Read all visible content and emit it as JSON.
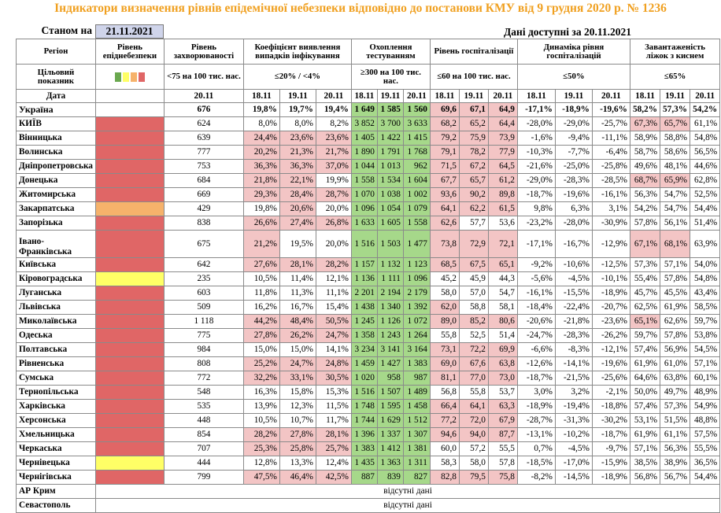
{
  "title": "Індикатори визначення рівнів епідемічної небезпеки відповідно до постанови КМУ від 9 грудня 2020 р. № 1236",
  "as_of_label": "Станом на",
  "as_of_value": "21.11.2021",
  "data_available": "Дані доступні за  20.11.2021",
  "headers": {
    "region": "Регіон",
    "danger_level": "Рівень епіднебезпеки",
    "incidence": "Рівень захворюваності",
    "detection": "Коефіцієнт виявлення випадків інфікування",
    "testing": "Охоплення тестуванням",
    "hosp": "Рівень госпіталізації",
    "hosp_dyn": "Динаміка рівня госпіталізацій",
    "oxygen": "Завантаженість ліжок з киснем",
    "target_label": "Цільовий показник",
    "incidence_target": "<75 на 100 тис. нас.",
    "detection_target": "≤20% / <4%",
    "testing_target": "≥300 на 100 тис. нас.",
    "hosp_target": "≤60 на 100 тис. нас.",
    "hosp_dyn_target": "≤50%",
    "oxygen_target": "≤65%",
    "date_label": "Дата",
    "date_single": "20.11",
    "dates": [
      "18.11",
      "19.11",
      "20.11"
    ]
  },
  "colors": {
    "red": "#e06666",
    "orange": "#f6b26b",
    "yellow": "#ffff66",
    "green": "#6aa84f",
    "pink": "#f3c5c5",
    "light_green": "#a6d88a",
    "title": "#f0a020"
  },
  "legend_swatches": [
    "#6aa84f",
    "#ffff66",
    "#f6b26b",
    "#e06666"
  ],
  "missing_text": "відсутні дані",
  "rows": [
    {
      "region": "Україна",
      "level": "",
      "inc": "676",
      "det": [
        "19,8%",
        "19,7%",
        "19,4%"
      ],
      "det_flag": [
        0,
        0,
        0
      ],
      "test": [
        "1 649",
        "1 585",
        "1 560"
      ],
      "test_flag": [
        1,
        1,
        1
      ],
      "hosp": [
        "69,6",
        "67,1",
        "64,9"
      ],
      "hosp_flag": [
        1,
        1,
        1
      ],
      "dyn": [
        "-17,1%",
        "-18,9%",
        "-19,6%"
      ],
      "oxy": [
        "58,2%",
        "57,3%",
        "54,2%"
      ],
      "oxy_flag": [
        0,
        0,
        0
      ]
    },
    {
      "region": "КИЇВ",
      "level": "red",
      "inc": "624",
      "det": [
        "8,0%",
        "8,0%",
        "8,2%"
      ],
      "det_flag": [
        0,
        0,
        0
      ],
      "test": [
        "3 852",
        "3 700",
        "3 633"
      ],
      "test_flag": [
        1,
        1,
        1
      ],
      "hosp": [
        "68,2",
        "65,2",
        "64,4"
      ],
      "hosp_flag": [
        1,
        1,
        1
      ],
      "dyn": [
        "-28,0%",
        "-29,0%",
        "-25,7%"
      ],
      "oxy": [
        "67,3%",
        "65,7%",
        "61,1%"
      ],
      "oxy_flag": [
        1,
        1,
        0
      ]
    },
    {
      "region": "Вінницька",
      "level": "red",
      "inc": "639",
      "det": [
        "24,4%",
        "23,6%",
        "23,6%"
      ],
      "det_flag": [
        1,
        1,
        1
      ],
      "test": [
        "1 405",
        "1 422",
        "1 415"
      ],
      "test_flag": [
        1,
        1,
        1
      ],
      "hosp": [
        "79,2",
        "75,9",
        "73,9"
      ],
      "hosp_flag": [
        1,
        1,
        1
      ],
      "dyn": [
        "-1,6%",
        "-9,4%",
        "-11,1%"
      ],
      "oxy": [
        "58,9%",
        "58,8%",
        "54,8%"
      ],
      "oxy_flag": [
        0,
        0,
        0
      ]
    },
    {
      "region": "Волинська",
      "level": "red",
      "inc": "777",
      "det": [
        "20,2%",
        "21,3%",
        "21,7%"
      ],
      "det_flag": [
        1,
        1,
        1
      ],
      "test": [
        "1 890",
        "1 791",
        "1 768"
      ],
      "test_flag": [
        1,
        1,
        1
      ],
      "hosp": [
        "79,1",
        "78,2",
        "77,9"
      ],
      "hosp_flag": [
        1,
        1,
        1
      ],
      "dyn": [
        "-10,3%",
        "-7,7%",
        "-6,4%"
      ],
      "oxy": [
        "58,7%",
        "58,6%",
        "56,5%"
      ],
      "oxy_flag": [
        0,
        0,
        0
      ]
    },
    {
      "region": "Дніпропетровська",
      "level": "red",
      "inc": "753",
      "det": [
        "36,3%",
        "36,3%",
        "37,0%"
      ],
      "det_flag": [
        1,
        1,
        1
      ],
      "test": [
        "1 044",
        "1 013",
        "962"
      ],
      "test_flag": [
        1,
        1,
        1
      ],
      "hosp": [
        "71,5",
        "67,2",
        "64,5"
      ],
      "hosp_flag": [
        1,
        1,
        1
      ],
      "dyn": [
        "-21,6%",
        "-25,0%",
        "-25,8%"
      ],
      "oxy": [
        "49,6%",
        "48,1%",
        "44,6%"
      ],
      "oxy_flag": [
        0,
        0,
        0
      ]
    },
    {
      "region": "Донецька",
      "level": "red",
      "inc": "684",
      "det": [
        "21,8%",
        "22,1%",
        "19,9%"
      ],
      "det_flag": [
        1,
        1,
        0
      ],
      "test": [
        "1 558",
        "1 534",
        "1 604"
      ],
      "test_flag": [
        1,
        1,
        1
      ],
      "hosp": [
        "67,7",
        "65,7",
        "61,2"
      ],
      "hosp_flag": [
        1,
        1,
        1
      ],
      "dyn": [
        "-29,0%",
        "-28,3%",
        "-28,5%"
      ],
      "oxy": [
        "68,7%",
        "65,9%",
        "62,8%"
      ],
      "oxy_flag": [
        1,
        1,
        0
      ]
    },
    {
      "region": "Житомирська",
      "level": "red",
      "inc": "669",
      "det": [
        "29,3%",
        "28,4%",
        "28,7%"
      ],
      "det_flag": [
        1,
        1,
        1
      ],
      "test": [
        "1 070",
        "1 038",
        "1 002"
      ],
      "test_flag": [
        1,
        1,
        1
      ],
      "hosp": [
        "93,6",
        "90,2",
        "89,8"
      ],
      "hosp_flag": [
        1,
        1,
        1
      ],
      "dyn": [
        "-18,7%",
        "-19,6%",
        "-16,1%"
      ],
      "oxy": [
        "56,3%",
        "54,7%",
        "52,5%"
      ],
      "oxy_flag": [
        0,
        0,
        0
      ]
    },
    {
      "region": "Закарпатська",
      "level": "orange",
      "inc": "429",
      "det": [
        "19,8%",
        "20,6%",
        "20,0%"
      ],
      "det_flag": [
        0,
        1,
        0
      ],
      "test": [
        "1 096",
        "1 054",
        "1 079"
      ],
      "test_flag": [
        1,
        1,
        1
      ],
      "hosp": [
        "64,1",
        "62,2",
        "61,5"
      ],
      "hosp_flag": [
        1,
        1,
        1
      ],
      "dyn": [
        "9,8%",
        "6,3%",
        "3,1%"
      ],
      "oxy": [
        "54,2%",
        "54,7%",
        "54,4%"
      ],
      "oxy_flag": [
        0,
        0,
        0
      ]
    },
    {
      "region": "Запорізька",
      "level": "red",
      "inc": "838",
      "det": [
        "26,6%",
        "27,4%",
        "26,8%"
      ],
      "det_flag": [
        1,
        1,
        1
      ],
      "test": [
        "1 633",
        "1 605",
        "1 558"
      ],
      "test_flag": [
        1,
        1,
        1
      ],
      "hosp": [
        "62,6",
        "57,7",
        "53,6"
      ],
      "hosp_flag": [
        1,
        0,
        0
      ],
      "dyn": [
        "-23,2%",
        "-28,0%",
        "-30,9%"
      ],
      "oxy": [
        "57,8%",
        "56,1%",
        "51,4%"
      ],
      "oxy_flag": [
        0,
        0,
        0
      ]
    },
    {
      "region": "Івано-Франківська",
      "level": "red",
      "inc": "675",
      "det": [
        "21,2%",
        "19,5%",
        "20,0%"
      ],
      "det_flag": [
        1,
        0,
        0
      ],
      "test": [
        "1 516",
        "1 503",
        "1 477"
      ],
      "test_flag": [
        1,
        1,
        1
      ],
      "hosp": [
        "73,8",
        "72,9",
        "72,1"
      ],
      "hosp_flag": [
        1,
        1,
        1
      ],
      "dyn": [
        "-17,1%",
        "-16,7%",
        "-12,9%"
      ],
      "oxy": [
        "67,1%",
        "68,1%",
        "63,9%"
      ],
      "oxy_flag": [
        1,
        1,
        0
      ],
      "tall": true
    },
    {
      "region": "Київська",
      "level": "red",
      "inc": "642",
      "det": [
        "27,6%",
        "28,1%",
        "28,2%"
      ],
      "det_flag": [
        1,
        1,
        1
      ],
      "test": [
        "1 157",
        "1 132",
        "1 123"
      ],
      "test_flag": [
        1,
        1,
        1
      ],
      "hosp": [
        "68,5",
        "67,5",
        "65,1"
      ],
      "hosp_flag": [
        1,
        1,
        1
      ],
      "dyn": [
        "-9,2%",
        "-10,6%",
        "-12,5%"
      ],
      "oxy": [
        "57,3%",
        "57,1%",
        "54,0%"
      ],
      "oxy_flag": [
        0,
        0,
        0
      ]
    },
    {
      "region": "Кіровоградська",
      "level": "yellow",
      "inc": "235",
      "det": [
        "10,5%",
        "11,4%",
        "12,1%"
      ],
      "det_flag": [
        0,
        0,
        0
      ],
      "test": [
        "1 136",
        "1 111",
        "1 096"
      ],
      "test_flag": [
        1,
        1,
        1
      ],
      "hosp": [
        "45,2",
        "45,9",
        "44,3"
      ],
      "hosp_flag": [
        0,
        0,
        0
      ],
      "dyn": [
        "-5,6%",
        "-4,5%",
        "-10,1%"
      ],
      "oxy": [
        "55,4%",
        "57,8%",
        "54,8%"
      ],
      "oxy_flag": [
        0,
        0,
        0
      ]
    },
    {
      "region": "Луганська",
      "level": "red",
      "inc": "603",
      "det": [
        "11,8%",
        "11,3%",
        "11,1%"
      ],
      "det_flag": [
        0,
        0,
        0
      ],
      "test": [
        "2 201",
        "2 194",
        "2 179"
      ],
      "test_flag": [
        1,
        1,
        1
      ],
      "hosp": [
        "58,0",
        "57,0",
        "54,7"
      ],
      "hosp_flag": [
        0,
        0,
        0
      ],
      "dyn": [
        "-16,1%",
        "-15,5%",
        "-18,9%"
      ],
      "oxy": [
        "45,7%",
        "45,5%",
        "43,4%"
      ],
      "oxy_flag": [
        0,
        0,
        0
      ]
    },
    {
      "region": "Львівська",
      "level": "red",
      "inc": "509",
      "det": [
        "16,2%",
        "16,7%",
        "15,4%"
      ],
      "det_flag": [
        0,
        0,
        0
      ],
      "test": [
        "1 438",
        "1 340",
        "1 392"
      ],
      "test_flag": [
        1,
        1,
        1
      ],
      "hosp": [
        "62,0",
        "58,8",
        "58,1"
      ],
      "hosp_flag": [
        1,
        0,
        0
      ],
      "dyn": [
        "-18,4%",
        "-22,4%",
        "-20,7%"
      ],
      "oxy": [
        "62,5%",
        "61,9%",
        "58,5%"
      ],
      "oxy_flag": [
        0,
        0,
        0
      ]
    },
    {
      "region": "Миколаївська",
      "level": "red",
      "inc": "1 118",
      "det": [
        "44,2%",
        "48,4%",
        "50,5%"
      ],
      "det_flag": [
        1,
        1,
        1
      ],
      "test": [
        "1 245",
        "1 126",
        "1 072"
      ],
      "test_flag": [
        1,
        1,
        1
      ],
      "hosp": [
        "89,0",
        "85,2",
        "80,6"
      ],
      "hosp_flag": [
        1,
        1,
        1
      ],
      "dyn": [
        "-20,6%",
        "-21,8%",
        "-23,6%"
      ],
      "oxy": [
        "65,1%",
        "62,6%",
        "59,7%"
      ],
      "oxy_flag": [
        1,
        0,
        0
      ]
    },
    {
      "region": "Одеська",
      "level": "red",
      "inc": "775",
      "det": [
        "27,8%",
        "26,2%",
        "24,7%"
      ],
      "det_flag": [
        1,
        1,
        1
      ],
      "test": [
        "1 358",
        "1 243",
        "1 264"
      ],
      "test_flag": [
        1,
        1,
        1
      ],
      "hosp": [
        "55,8",
        "52,5",
        "51,4"
      ],
      "hosp_flag": [
        0,
        0,
        0
      ],
      "dyn": [
        "-24,7%",
        "-28,3%",
        "-26,2%"
      ],
      "oxy": [
        "59,7%",
        "57,8%",
        "53,8%"
      ],
      "oxy_flag": [
        0,
        0,
        0
      ]
    },
    {
      "region": "Полтавська",
      "level": "red",
      "inc": "984",
      "det": [
        "15,0%",
        "15,0%",
        "14,1%"
      ],
      "det_flag": [
        0,
        0,
        0
      ],
      "test": [
        "3 234",
        "3 141",
        "3 164"
      ],
      "test_flag": [
        1,
        1,
        1
      ],
      "hosp": [
        "73,1",
        "72,2",
        "69,9"
      ],
      "hosp_flag": [
        1,
        1,
        1
      ],
      "dyn": [
        "-6,6%",
        "-8,3%",
        "-12,1%"
      ],
      "oxy": [
        "57,4%",
        "56,9%",
        "54,5%"
      ],
      "oxy_flag": [
        0,
        0,
        0
      ]
    },
    {
      "region": "Рівненська",
      "level": "red",
      "inc": "808",
      "det": [
        "25,2%",
        "24,7%",
        "24,8%"
      ],
      "det_flag": [
        1,
        1,
        1
      ],
      "test": [
        "1 459",
        "1 427",
        "1 383"
      ],
      "test_flag": [
        1,
        1,
        1
      ],
      "hosp": [
        "69,0",
        "67,6",
        "63,8"
      ],
      "hosp_flag": [
        1,
        1,
        1
      ],
      "dyn": [
        "-12,6%",
        "-14,1%",
        "-19,6%"
      ],
      "oxy": [
        "61,9%",
        "61,0%",
        "57,1%"
      ],
      "oxy_flag": [
        0,
        0,
        0
      ]
    },
    {
      "region": "Сумська",
      "level": "red",
      "inc": "772",
      "det": [
        "32,2%",
        "33,1%",
        "30,5%"
      ],
      "det_flag": [
        1,
        1,
        1
      ],
      "test": [
        "1 020",
        "958",
        "987"
      ],
      "test_flag": [
        1,
        1,
        1
      ],
      "hosp": [
        "81,1",
        "77,0",
        "73,0"
      ],
      "hosp_flag": [
        1,
        1,
        1
      ],
      "dyn": [
        "-18,7%",
        "-21,5%",
        "-25,6%"
      ],
      "oxy": [
        "64,6%",
        "63,8%",
        "60,1%"
      ],
      "oxy_flag": [
        0,
        0,
        0
      ]
    },
    {
      "region": "Тернопільська",
      "level": "red",
      "inc": "548",
      "det": [
        "16,3%",
        "15,8%",
        "15,3%"
      ],
      "det_flag": [
        0,
        0,
        0
      ],
      "test": [
        "1 516",
        "1 507",
        "1 489"
      ],
      "test_flag": [
        1,
        1,
        1
      ],
      "hosp": [
        "56,8",
        "55,8",
        "53,7"
      ],
      "hosp_flag": [
        0,
        0,
        0
      ],
      "dyn": [
        "3,0%",
        "3,2%",
        "-2,1%"
      ],
      "oxy": [
        "50,0%",
        "49,7%",
        "48,9%"
      ],
      "oxy_flag": [
        0,
        0,
        0
      ]
    },
    {
      "region": "Харківська",
      "level": "red",
      "inc": "535",
      "det": [
        "13,9%",
        "12,3%",
        "11,5%"
      ],
      "det_flag": [
        0,
        0,
        0
      ],
      "test": [
        "1 748",
        "1 595",
        "1 458"
      ],
      "test_flag": [
        1,
        1,
        1
      ],
      "hosp": [
        "66,4",
        "64,1",
        "63,3"
      ],
      "hosp_flag": [
        1,
        1,
        1
      ],
      "dyn": [
        "-18,9%",
        "-19,4%",
        "-18,8%"
      ],
      "oxy": [
        "57,4%",
        "57,3%",
        "54,9%"
      ],
      "oxy_flag": [
        0,
        0,
        0
      ]
    },
    {
      "region": "Херсонська",
      "level": "red",
      "inc": "448",
      "det": [
        "10,5%",
        "10,7%",
        "11,7%"
      ],
      "det_flag": [
        0,
        0,
        0
      ],
      "test": [
        "1 744",
        "1 629",
        "1 512"
      ],
      "test_flag": [
        1,
        1,
        1
      ],
      "hosp": [
        "77,2",
        "72,0",
        "67,9"
      ],
      "hosp_flag": [
        1,
        1,
        1
      ],
      "dyn": [
        "-28,7%",
        "-31,3%",
        "-30,2%"
      ],
      "oxy": [
        "53,1%",
        "51,5%",
        "48,8%"
      ],
      "oxy_flag": [
        0,
        0,
        0
      ]
    },
    {
      "region": "Хмельницька",
      "level": "red",
      "inc": "854",
      "det": [
        "28,2%",
        "27,8%",
        "28,1%"
      ],
      "det_flag": [
        1,
        1,
        1
      ],
      "test": [
        "1 396",
        "1 337",
        "1 307"
      ],
      "test_flag": [
        1,
        1,
        1
      ],
      "hosp": [
        "94,6",
        "94,0",
        "87,7"
      ],
      "hosp_flag": [
        1,
        1,
        1
      ],
      "dyn": [
        "-13,1%",
        "-10,2%",
        "-18,7%"
      ],
      "oxy": [
        "61,9%",
        "61,1%",
        "57,5%"
      ],
      "oxy_flag": [
        0,
        0,
        0
      ]
    },
    {
      "region": "Черкаська",
      "level": "red",
      "inc": "707",
      "det": [
        "25,3%",
        "25,8%",
        "25,7%"
      ],
      "det_flag": [
        1,
        1,
        1
      ],
      "test": [
        "1 383",
        "1 412",
        "1 381"
      ],
      "test_flag": [
        1,
        1,
        1
      ],
      "hosp": [
        "60,0",
        "57,2",
        "55,5"
      ],
      "hosp_flag": [
        0,
        0,
        0
      ],
      "dyn": [
        "0,7%",
        "-4,5%",
        "-9,7%"
      ],
      "oxy": [
        "57,1%",
        "56,3%",
        "55,5%"
      ],
      "oxy_flag": [
        0,
        0,
        0
      ]
    },
    {
      "region": "Чернівецька",
      "level": "yellow",
      "inc": "444",
      "det": [
        "12,8%",
        "13,3%",
        "12,4%"
      ],
      "det_flag": [
        0,
        0,
        0
      ],
      "test": [
        "1 435",
        "1 363",
        "1 311"
      ],
      "test_flag": [
        1,
        1,
        1
      ],
      "hosp": [
        "58,3",
        "58,0",
        "57,8"
      ],
      "hosp_flag": [
        0,
        0,
        0
      ],
      "dyn": [
        "-18,5%",
        "-17,0%",
        "-15,9%"
      ],
      "oxy": [
        "38,5%",
        "38,9%",
        "36,5%"
      ],
      "oxy_flag": [
        0,
        0,
        0
      ]
    },
    {
      "region": "Чернігівська",
      "level": "red",
      "inc": "799",
      "det": [
        "47,5%",
        "46,4%",
        "42,5%"
      ],
      "det_flag": [
        1,
        1,
        1
      ],
      "test": [
        "887",
        "839",
        "827"
      ],
      "test_flag": [
        1,
        1,
        1
      ],
      "hosp": [
        "82,8",
        "79,5",
        "75,8"
      ],
      "hosp_flag": [
        1,
        1,
        1
      ],
      "dyn": [
        "-8,2%",
        "-14,5%",
        "-18,9%"
      ],
      "oxy": [
        "56,8%",
        "56,7%",
        "54,4%"
      ],
      "oxy_flag": [
        0,
        0,
        0
      ]
    }
  ],
  "missing_rows": [
    "АР Крим",
    "Севастополь"
  ]
}
